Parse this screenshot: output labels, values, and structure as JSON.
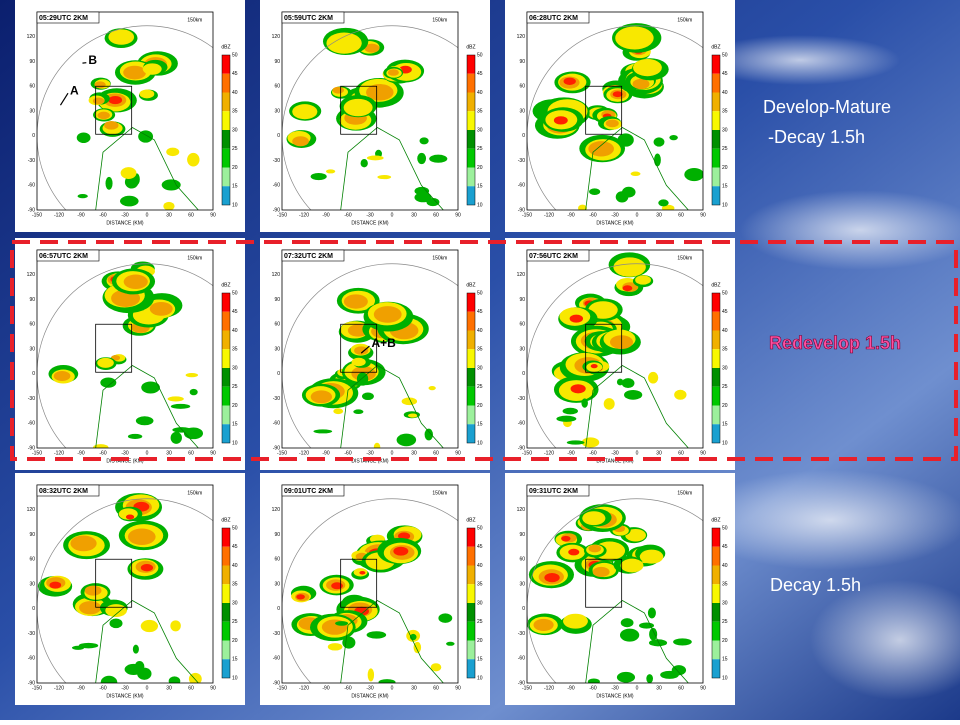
{
  "panels": [
    {
      "time": "05:29UTC 2KM",
      "labels": [
        "B",
        "A"
      ]
    },
    {
      "time": "05:59UTC 2KM"
    },
    {
      "time": "06:28UTC 2KM"
    },
    {
      "time": "06:57UTC 2KM"
    },
    {
      "time": "07:32UTC 2KM",
      "labels": [
        "A+B"
      ]
    },
    {
      "time": "07:56UTC 2KM"
    },
    {
      "time": "08:32UTC 2KM"
    },
    {
      "time": "09:01UTC 2KM"
    },
    {
      "time": "09:31UTC 2KM"
    }
  ],
  "axes": {
    "x_label": "DISTANCE (KM)",
    "xticks": [
      "-150",
      "-120",
      "-90",
      "-60",
      "-30",
      "0",
      "30",
      "60",
      "90"
    ],
    "yticks": [
      "120",
      "90",
      "60",
      "30",
      "0",
      "-30",
      "-60",
      "-90"
    ]
  },
  "colorbar": {
    "unit": "dBZ",
    "ticks": [
      "50",
      "45",
      "40",
      "35",
      "30",
      "25",
      "20",
      "15",
      "10"
    ]
  },
  "range_label": "150km",
  "stages": {
    "first": [
      "Develop-Mature",
      "-Decay 1.5h"
    ],
    "second": "Redevelop 1.5h",
    "third": "Decay  1.5h"
  }
}
